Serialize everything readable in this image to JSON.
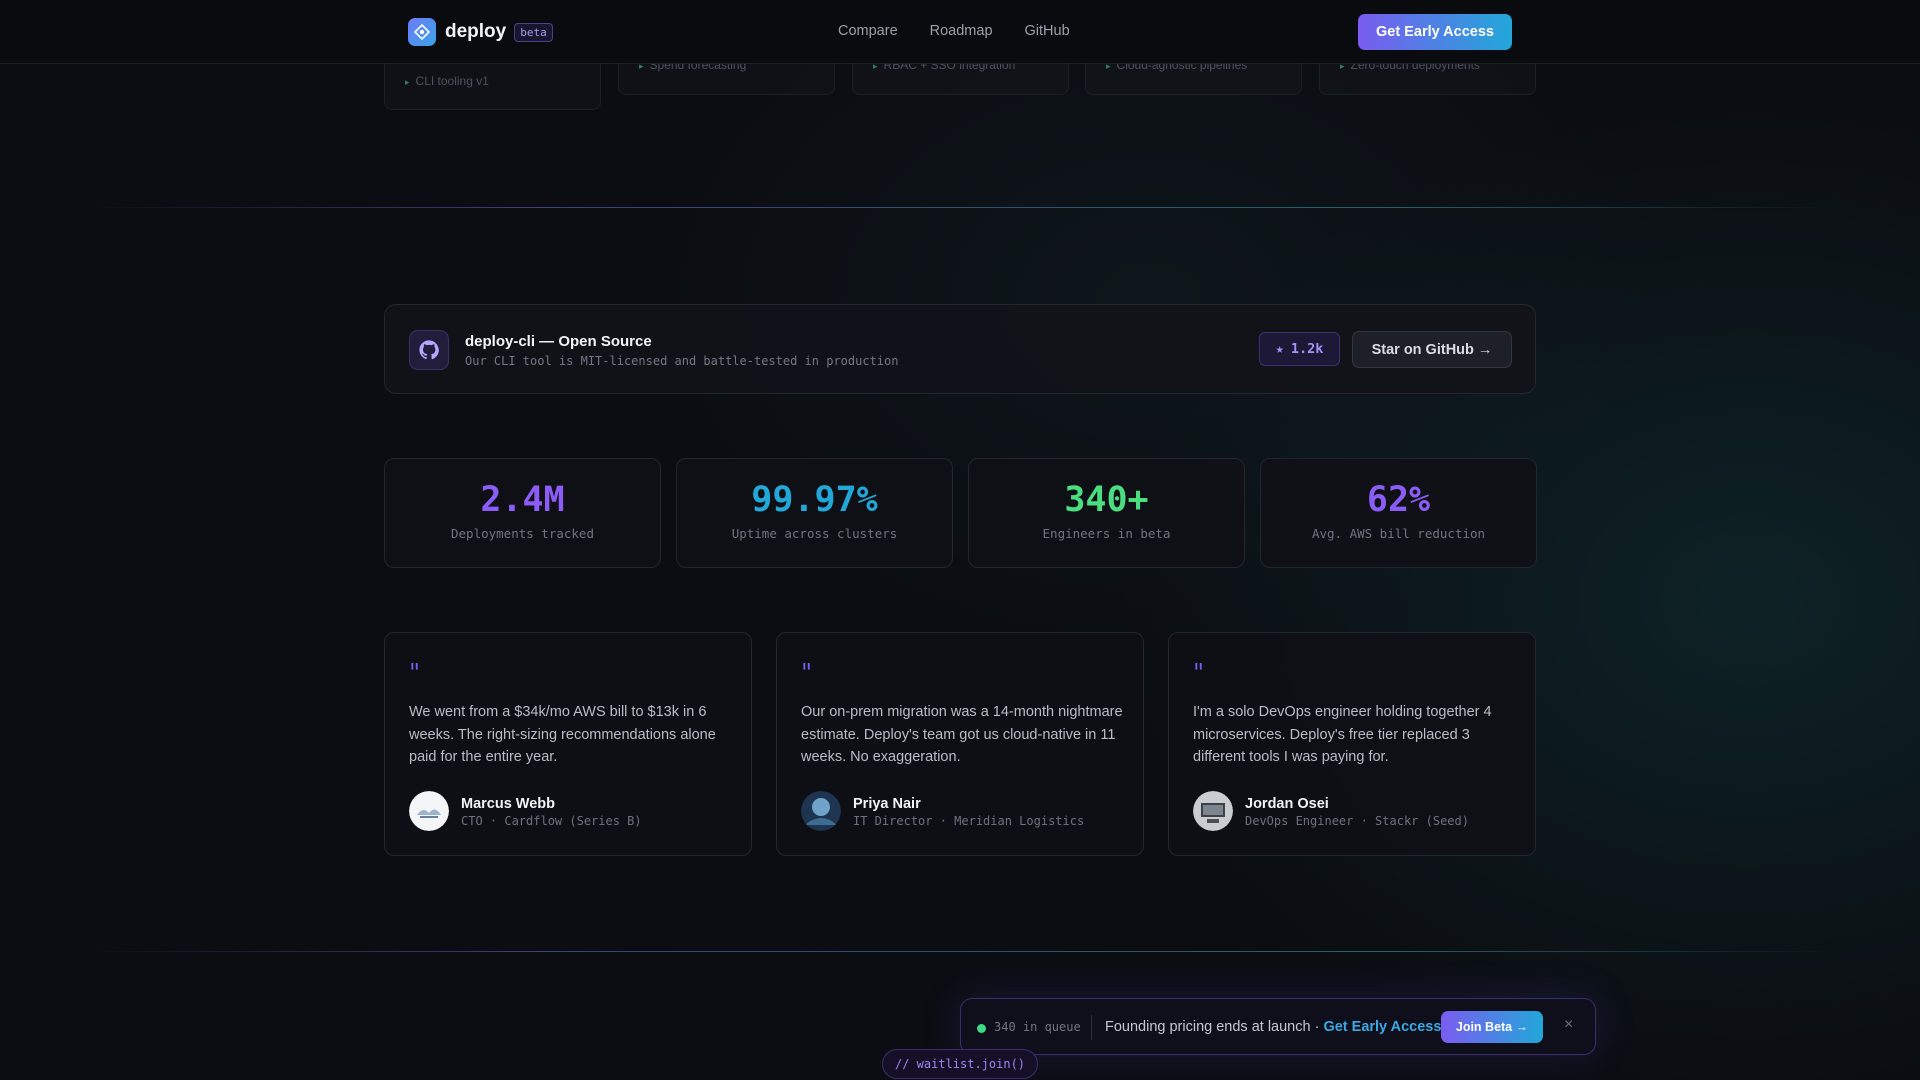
{
  "header": {
    "brand": "deploy",
    "badge": "beta",
    "nav": [
      "Compare",
      "Roadmap",
      "GitHub"
    ],
    "cta": "Get Early Access"
  },
  "ghost_features": [
    "CLI tooling v1",
    "Spend forecasting",
    "RBAC + SSO integration",
    "Cloud-agnostic pipelines",
    "Zero-touch deployments"
  ],
  "oss": {
    "title": "deploy-cli — Open Source",
    "subtitle": "Our CLI tool is MIT-licensed and battle-tested in production",
    "stars": "1.2k",
    "button": "Star on GitHub →"
  },
  "stats": [
    {
      "value": "2.4M",
      "label": "Deployments tracked",
      "color": "#8b5cf6"
    },
    {
      "value": "99.97%",
      "label": "Uptime across clusters",
      "color": "#22a7d9"
    },
    {
      "value": "340+",
      "label": "Engineers in beta",
      "color": "#4ade80"
    },
    {
      "value": "62%",
      "label": "Avg. AWS bill reduction",
      "color": "#8b5cf6"
    }
  ],
  "testimonials": [
    {
      "mark": "\"",
      "quote": "We went from a $34k/mo AWS bill to $13k in 6 weeks. The right-sizing recommendations alone paid for the entire year.",
      "name": "Marcus Webb",
      "role": "CTO · Cardflow (Series B)"
    },
    {
      "mark": "\"",
      "quote": "Our on-prem migration was a 14-month nightmare estimate. Deploy's team got us cloud-native in 11 weeks. No exaggeration.",
      "name": "Priya Nair",
      "role": "IT Director · Meridian Logistics"
    },
    {
      "mark": "\"",
      "quote": "I'm a solo DevOps engineer holding together 4 microservices. Deploy's free tier replaced 3 different tools I was paying for.",
      "name": "Jordan Osei",
      "role": "DevOps Engineer · Stackr (Seed)"
    }
  ],
  "sticky": {
    "queue": "340 in queue",
    "message": "Founding pricing ends at launch · ",
    "highlight": "Get Early Access",
    "button": "Join Beta →",
    "close": "×"
  },
  "code_chip": "// waitlist.join()"
}
